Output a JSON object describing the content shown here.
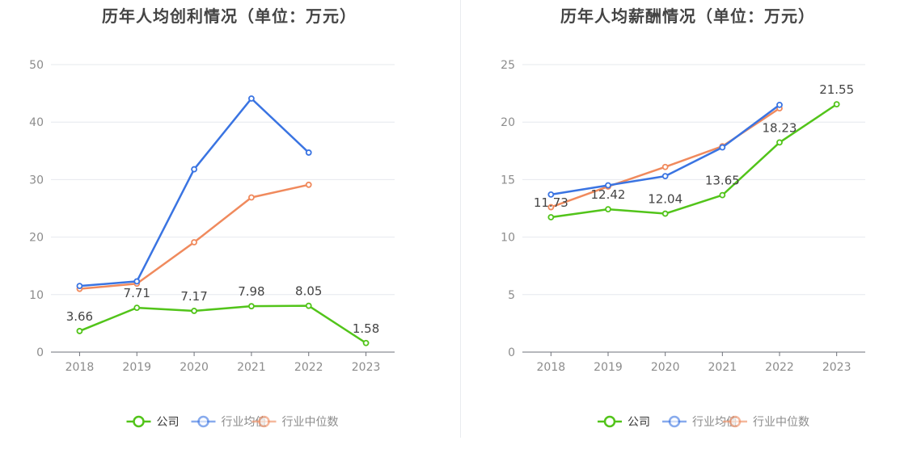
{
  "colors": {
    "company": "#52c41a",
    "industry_avg": "#3a74e2",
    "industry_median": "#f08a5d"
  },
  "legend": [
    {
      "label": "公司",
      "color": "#52c41a"
    },
    {
      "label": "行业均值",
      "color": "#3a74e2"
    },
    {
      "label": "行业中位数",
      "color": "#f08a5d"
    }
  ],
  "chart_data": [
    {
      "type": "line",
      "title": "历年人均创利情况（单位：万元）",
      "categories": [
        "2018",
        "2019",
        "2020",
        "2021",
        "2022",
        "2023"
      ],
      "ylim": [
        0,
        50
      ],
      "yticks": [
        0,
        10,
        20,
        30,
        40,
        50
      ],
      "grid": true,
      "legend_position": "bottom",
      "series": [
        {
          "name": "公司",
          "values": [
            3.66,
            7.71,
            7.17,
            7.98,
            8.05,
            1.58
          ],
          "labels": [
            "3.66",
            "7.71",
            "7.17",
            "7.98",
            "8.05",
            "1.58"
          ]
        },
        {
          "name": "行业均值",
          "values": [
            11.5,
            12.3,
            31.8,
            44.1,
            34.7,
            null
          ]
        },
        {
          "name": "行业中位数",
          "values": [
            11.0,
            11.9,
            19.1,
            26.9,
            29.1,
            null
          ]
        }
      ]
    },
    {
      "type": "line",
      "title": "历年人均薪酬情况（单位：万元）",
      "categories": [
        "2018",
        "2019",
        "2020",
        "2021",
        "2022",
        "2023"
      ],
      "ylim": [
        0,
        25
      ],
      "yticks": [
        0,
        5,
        10,
        15,
        20,
        25
      ],
      "grid": true,
      "legend_position": "bottom",
      "series": [
        {
          "name": "公司",
          "values": [
            11.73,
            12.42,
            12.04,
            13.65,
            18.23,
            21.55
          ],
          "labels": [
            "11.73",
            "12.42",
            "12.04",
            "13.65",
            "18.23",
            "21.55"
          ]
        },
        {
          "name": "行业均值",
          "values": [
            13.7,
            14.5,
            15.3,
            17.8,
            21.5,
            null
          ]
        },
        {
          "name": "行业中位数",
          "values": [
            12.6,
            14.4,
            16.1,
            17.9,
            21.2,
            null
          ]
        }
      ]
    }
  ]
}
